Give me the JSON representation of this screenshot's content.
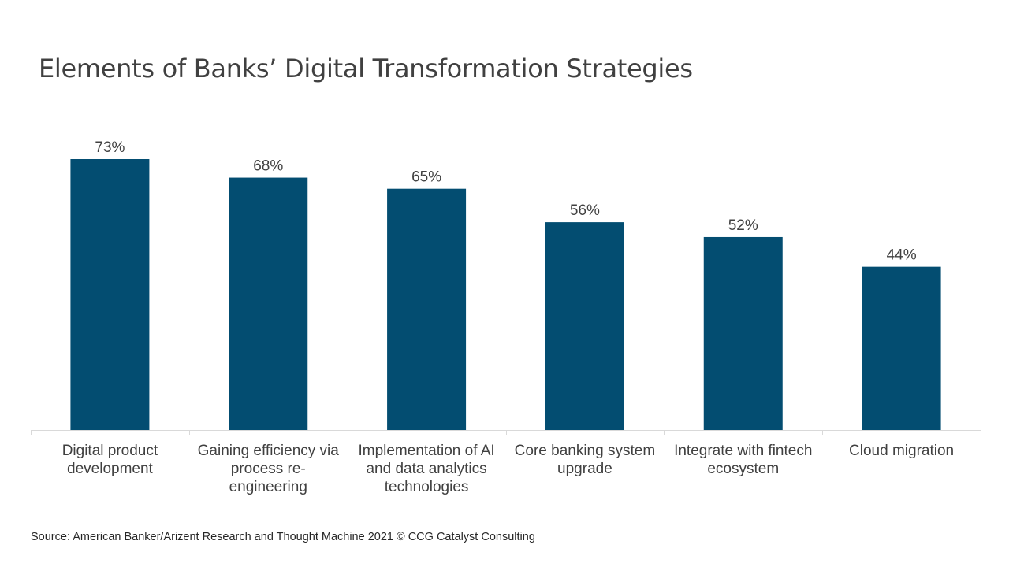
{
  "chart_data": {
    "type": "bar",
    "title": "Elements of Banks’ Digital Transformation Strategies",
    "categories": [
      [
        "Digital product",
        "development"
      ],
      [
        "Gaining efficiency via",
        "process re-",
        "engineering"
      ],
      [
        "Implementation of AI",
        "and data analytics",
        "technologies"
      ],
      [
        "Core banking system",
        "upgrade"
      ],
      [
        "Integrate with fintech",
        "ecosystem"
      ],
      [
        "Cloud migration"
      ]
    ],
    "values": [
      73,
      68,
      65,
      56,
      52,
      44
    ],
    "data_labels": [
      "73%",
      "68%",
      "65%",
      "56%",
      "52%",
      "44%"
    ],
    "ylim": [
      0,
      73
    ],
    "xlabel": "",
    "ylabel": "",
    "grid": false,
    "legend": "none",
    "colors": {
      "bar": "#034D71",
      "axis": "#D9D9D9",
      "text": "#404040"
    }
  },
  "footer": {
    "source": "Source: American Banker/Arizent Research and Thought Machine 2021 © CCG Catalyst Consulting"
  }
}
